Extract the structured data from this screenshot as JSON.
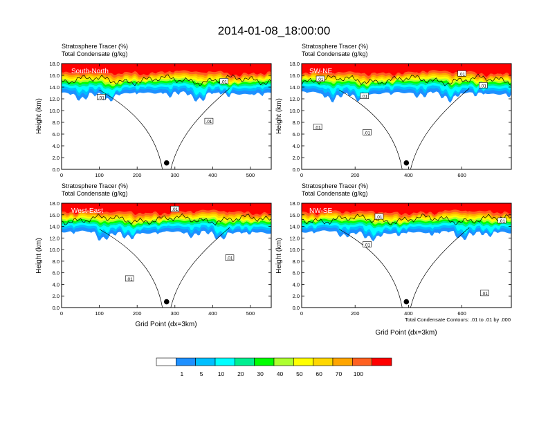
{
  "title": "2014-01-08_18:00:00",
  "chart_data": [
    {
      "type": "heatmap",
      "panel_label": "South-North",
      "subtitle_lines": [
        "Stratosphere Tracer   (%)",
        "Total Condensate   (g/kg)"
      ],
      "ylabel": "Height (km)",
      "xlabel": "",
      "xlim": [
        0,
        555
      ],
      "ylim": [
        0,
        18
      ],
      "xticks": [
        "0",
        "100",
        "200",
        "300",
        "400",
        "500"
      ],
      "yticks": [
        "0.0",
        "2.0",
        "4.0",
        "6.0",
        "8.0",
        "10.0",
        "12.0",
        "14.0",
        "16.0",
        "18.0"
      ],
      "marker": {
        "x": 278,
        "y": 1.1
      },
      "contour_labels": [
        {
          "text": ".01",
          "x": 105,
          "y": 12.2
        },
        {
          "text": ".01",
          "x": 390,
          "y": 8.1
        },
        {
          "text": ".01",
          "x": 430,
          "y": 14.9
        }
      ]
    },
    {
      "type": "heatmap",
      "panel_label": "SW-NE",
      "subtitle_lines": [
        "Stratosphere Tracer   (%)",
        "Total Condensate   (g/kg)"
      ],
      "ylabel": "Height (km)",
      "xlabel": "",
      "xlim": [
        0,
        785
      ],
      "ylim": [
        0,
        18
      ],
      "xticks": [
        "0",
        "200",
        "400",
        "600"
      ],
      "yticks": [
        "0.0",
        "2.0",
        "4.0",
        "6.0",
        "8.0",
        "10.0",
        "12.0",
        "14.0",
        "16.0",
        "18.0"
      ],
      "marker": {
        "x": 392,
        "y": 1.1
      },
      "contour_labels": [
        {
          "text": ".01",
          "x": 70,
          "y": 15.3
        },
        {
          "text": ".01",
          "x": 60,
          "y": 7.1
        },
        {
          "text": ".01",
          "x": 235,
          "y": 12.4
        },
        {
          "text": ".01",
          "x": 245,
          "y": 6.2
        },
        {
          "text": ".01",
          "x": 600,
          "y": 16.2
        },
        {
          "text": ".01",
          "x": 680,
          "y": 14.2
        }
      ]
    },
    {
      "type": "heatmap",
      "panel_label": "West-East",
      "subtitle_lines": [
        "Stratosphere Tracer   (%)",
        "Total Condensate   (g/kg)"
      ],
      "ylabel": "Height (km)",
      "xlabel": "Grid Point (dx=3km)",
      "xlim": [
        0,
        555
      ],
      "ylim": [
        0,
        18
      ],
      "xticks": [
        "0",
        "100",
        "200",
        "300",
        "400",
        "500"
      ],
      "yticks": [
        "0.0",
        "2.0",
        "4.0",
        "6.0",
        "8.0",
        "10.0",
        "12.0",
        "14.0",
        "16.0",
        "18.0"
      ],
      "marker": {
        "x": 278,
        "y": 1.0
      },
      "contour_labels": [
        {
          "text": ".01",
          "x": 300,
          "y": 16.9
        },
        {
          "text": ".01",
          "x": 180,
          "y": 4.9
        },
        {
          "text": ".01",
          "x": 445,
          "y": 8.5
        }
      ]
    },
    {
      "type": "heatmap",
      "panel_label": "NW-SE",
      "subtitle_lines": [
        "Stratosphere Tracer   (%)",
        "Total Condensate   (g/kg)"
      ],
      "ylabel": "Height (km)",
      "xlabel": "Grid Point (dx=3km)",
      "xlim": [
        0,
        785
      ],
      "ylim": [
        0,
        18
      ],
      "xticks": [
        "0",
        "200",
        "400",
        "600"
      ],
      "yticks": [
        "0.0",
        "2.0",
        "4.0",
        "6.0",
        "8.0",
        "10.0",
        "12.0",
        "14.0",
        "16.0",
        "18.0"
      ],
      "marker": {
        "x": 392,
        "y": 1.0
      },
      "contour_labels": [
        {
          "text": ".01",
          "x": 245,
          "y": 10.8
        },
        {
          "text": ".01",
          "x": 290,
          "y": 15.6
        },
        {
          "text": ".01",
          "x": 750,
          "y": 14.9
        },
        {
          "text": ".01",
          "x": 685,
          "y": 2.4
        }
      ],
      "footnote": "Total Condensate Contours: .01 to .01 by .000"
    }
  ],
  "colorbar": {
    "labels": [
      "1",
      "5",
      "10",
      "20",
      "30",
      "40",
      "50",
      "60",
      "70",
      "100"
    ],
    "colors": [
      "#ffffff",
      "#1e90ff",
      "#00bfff",
      "#00ffff",
      "#00ee90",
      "#00ff00",
      "#adff2f",
      "#ffff00",
      "#ffd700",
      "#ffa500",
      "#ff6020",
      "#ff0000"
    ]
  }
}
